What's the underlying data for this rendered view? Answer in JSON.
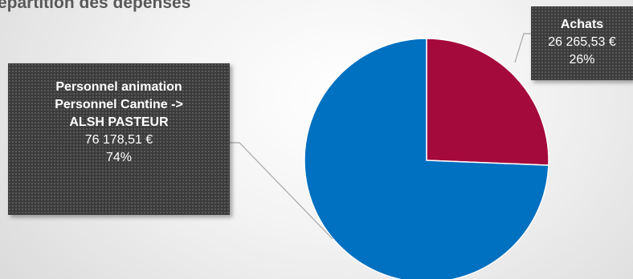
{
  "chart_data": {
    "type": "pie",
    "title": "épartition des dépenses",
    "slices": [
      {
        "label_lines": [
          "Achats"
        ],
        "value_label": "26 265,53 €",
        "value": 26265.53,
        "percent_label": "26%",
        "color": "#a50a3c"
      },
      {
        "label_lines": [
          "Personnel animation",
          "Personnel Cantine ->",
          "ALSH PASTEUR"
        ],
        "value_label": "76 178,51 €",
        "value": 76178.51,
        "percent_label": "74%",
        "color": "#0070c0"
      }
    ]
  }
}
